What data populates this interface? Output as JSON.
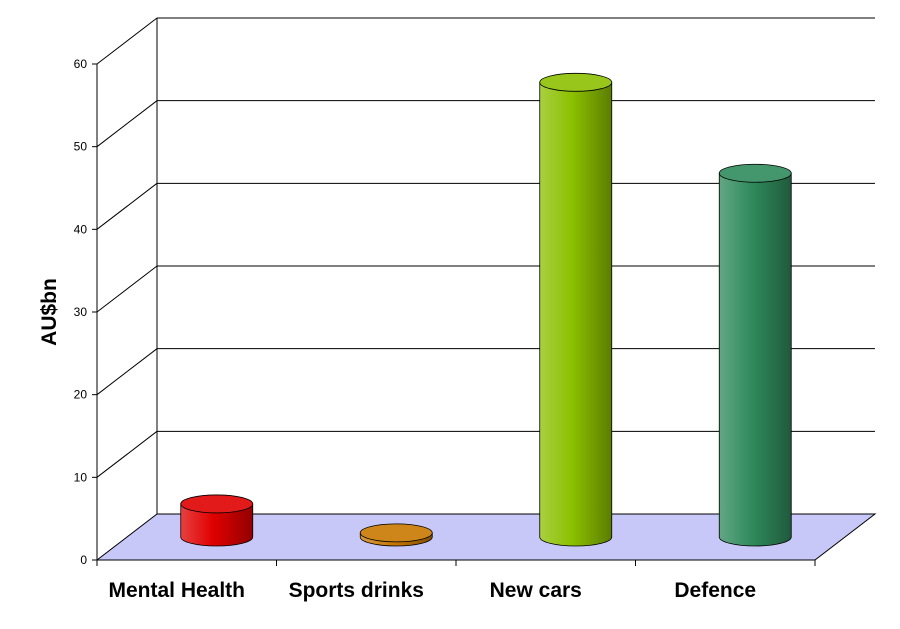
{
  "chart_data": {
    "type": "bar",
    "style": "3d-cylinder",
    "categories": [
      "Mental Health",
      "Sports drinks",
      "New cars",
      "Defence"
    ],
    "values": [
      4,
      0.5,
      55,
      44
    ],
    "colors": [
      "#e00000",
      "#c87800",
      "#8cc000",
      "#2f8a5c"
    ],
    "ylabel": "AU$bn",
    "ylim": [
      0,
      60
    ],
    "yticks": [
      "0",
      "10",
      "20",
      "30",
      "40",
      "50",
      "60"
    ],
    "grid": true,
    "floor_color": "#c8c8f8"
  }
}
